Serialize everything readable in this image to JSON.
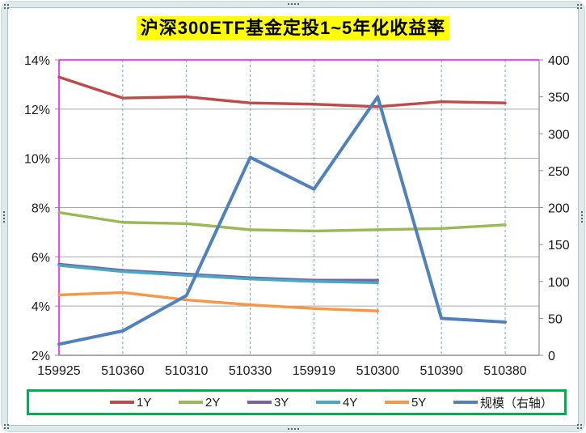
{
  "chart_data": {
    "type": "line",
    "title": "沪深300ETF基金定投1~5年化收益率",
    "categories": [
      "159925",
      "510360",
      "510310",
      "510330",
      "159919",
      "510300",
      "510390",
      "510380"
    ],
    "series": [
      {
        "name": "1Y",
        "color": "#BE4B48",
        "axis": "left",
        "values": [
          13.3,
          12.45,
          12.5,
          12.25,
          12.2,
          12.1,
          12.3,
          12.25
        ]
      },
      {
        "name": "2Y",
        "color": "#98B954",
        "axis": "left",
        "values": [
          7.8,
          7.4,
          7.35,
          7.1,
          7.05,
          7.1,
          7.15,
          7.3
        ]
      },
      {
        "name": "3Y",
        "color": "#7D60A0",
        "axis": "left",
        "values": [
          5.7,
          5.45,
          5.3,
          5.15,
          5.05,
          5.05,
          null,
          null
        ]
      },
      {
        "name": "4Y",
        "color": "#46AAC5",
        "axis": "left",
        "values": [
          5.65,
          5.4,
          5.25,
          5.1,
          5.0,
          4.95,
          null,
          null
        ]
      },
      {
        "name": "5Y",
        "color": "#F79646",
        "axis": "left",
        "values": [
          4.45,
          4.55,
          4.25,
          4.05,
          3.9,
          3.8,
          null,
          null
        ]
      },
      {
        "name": "规模（右轴）",
        "color": "#4F81BD",
        "axis": "right",
        "values": [
          15,
          33,
          81,
          268,
          225,
          350,
          50,
          45
        ]
      }
    ],
    "left_axis": {
      "min": 2,
      "max": 14,
      "step": 2,
      "tick_labels": [
        "2%",
        "4%",
        "6%",
        "8%",
        "10%",
        "12%",
        "14%"
      ]
    },
    "right_axis": {
      "min": 0,
      "max": 400,
      "step": 50,
      "tick_labels": [
        "0",
        "50",
        "100",
        "150",
        "200",
        "250",
        "300",
        "350",
        "400"
      ]
    },
    "grid": true,
    "legend_position": "bottom"
  },
  "colors": {
    "title_bg": "#FFFF00",
    "legend_border": "#00B050",
    "plot_border": "#FF00FF",
    "gridline": "#A6A6A6",
    "axis_line": "#8C8C8C",
    "category_gridline": "#7A9CC6",
    "frame": "#DCEAEA",
    "text": "#1A1A1A"
  }
}
